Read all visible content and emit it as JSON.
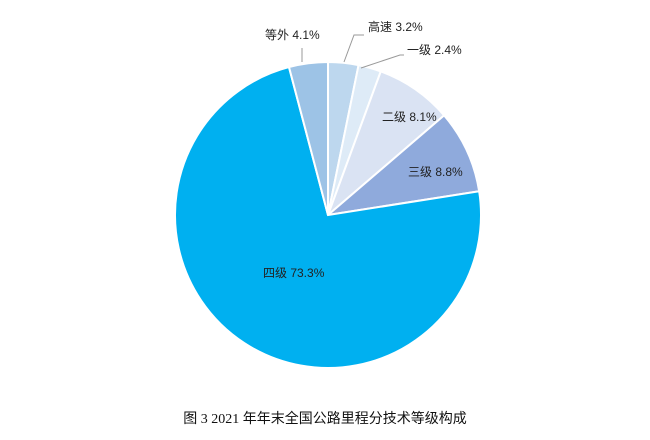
{
  "chart_data": {
    "type": "pie",
    "title": "图 3    2021 年年末全国公路里程分技术等级构成",
    "start": "12 o'clock, clockwise",
    "slices": [
      {
        "label": "高速",
        "value": 3.2,
        "text": "高速 3.2%",
        "color": "#bdd7ee"
      },
      {
        "label": "一级",
        "value": 2.4,
        "text": "一级 2.4%",
        "color": "#deebf7"
      },
      {
        "label": "二级",
        "value": 8.1,
        "text": "二级 8.1%",
        "color": "#dae3f3"
      },
      {
        "label": "三级",
        "value": 8.8,
        "text": "三级 8.8%",
        "color": "#8faadc"
      },
      {
        "label": "四级",
        "value": 73.3,
        "text": "四级 73.3%",
        "color": "#00b0f0"
      },
      {
        "label": "等外",
        "value": 4.1,
        "text": "等外 4.1%",
        "color": "#9dc3e6"
      }
    ]
  }
}
